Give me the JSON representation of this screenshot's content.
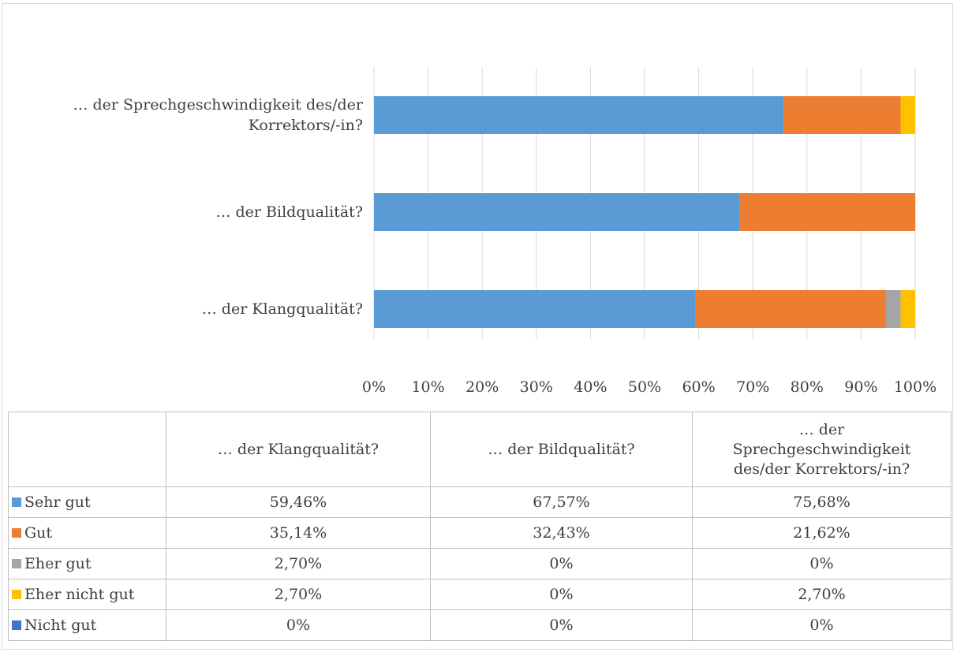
{
  "chart_data": {
    "type": "bar",
    "orientation": "horizontal",
    "stacked": true,
    "categories": [
      "… der Klangqualität?",
      "… der Bildqualität?",
      "… der Sprechgeschwindigkeit des/der Korrektors/-in?"
    ],
    "series": [
      {
        "name": "Sehr gut",
        "color": "#5b9bd5",
        "values": [
          59.46,
          67.57,
          75.68
        ],
        "value_labels": [
          "59,46%",
          "67,57%",
          "75,68%"
        ]
      },
      {
        "name": "Gut",
        "color": "#ed7d31",
        "values": [
          35.14,
          32.43,
          21.62
        ],
        "value_labels": [
          "35,14%",
          "32,43%",
          "21,62%"
        ]
      },
      {
        "name": "Eher gut",
        "color": "#a5a5a5",
        "values": [
          2.7,
          0,
          0
        ],
        "value_labels": [
          "2,70%",
          "0%",
          "0%"
        ]
      },
      {
        "name": "Eher nicht gut",
        "color": "#ffc000",
        "values": [
          2.7,
          0,
          2.7
        ],
        "value_labels": [
          "2,70%",
          "0%",
          "2,70%"
        ]
      },
      {
        "name": "Nicht gut",
        "color": "#4472c4",
        "values": [
          0,
          0,
          0
        ],
        "value_labels": [
          "0%",
          "0%",
          "0%"
        ]
      }
    ],
    "xlim": [
      0,
      100
    ],
    "xticks": [
      {
        "value": 0,
        "label": "0%"
      },
      {
        "value": 10,
        "label": "10%"
      },
      {
        "value": 20,
        "label": "20%"
      },
      {
        "value": 30,
        "label": "30%"
      },
      {
        "value": 40,
        "label": "40%"
      },
      {
        "value": 50,
        "label": "50%"
      },
      {
        "value": 60,
        "label": "60%"
      },
      {
        "value": 70,
        "label": "70%"
      },
      {
        "value": 80,
        "label": "80%"
      },
      {
        "value": 90,
        "label": "90%"
      },
      {
        "value": 100,
        "label": "100%"
      }
    ],
    "grid": true,
    "data_table": true
  }
}
